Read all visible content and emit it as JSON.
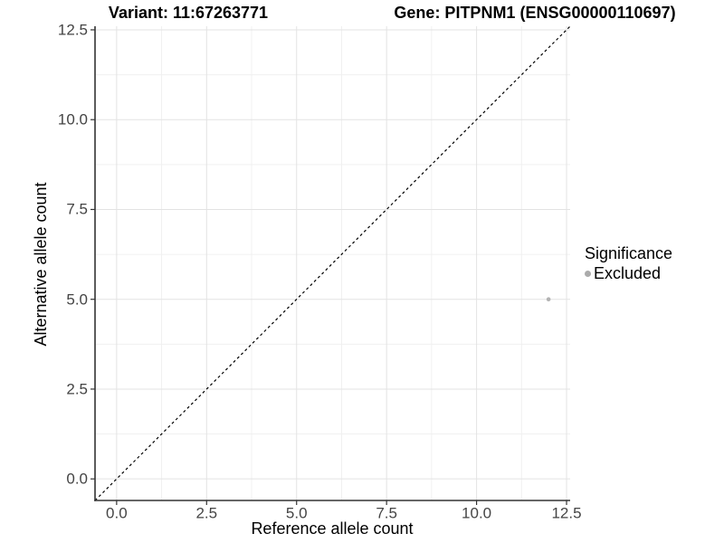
{
  "figure": {
    "title_left": "Variant: 11:67263771",
    "title_right": "Gene: PITPNM1 (ENSG00000110697)"
  },
  "chart_data": {
    "type": "scatter",
    "title": "Variant: 11:67263771    Gene: PITPNM1 (ENSG00000110697)",
    "xlabel": "Reference allele count",
    "ylabel": "Alternative allele count",
    "xlim": [
      -0.6,
      12.6
    ],
    "ylim": [
      -0.6,
      12.6
    ],
    "x_ticks": [
      0,
      2.5,
      5,
      7.5,
      10,
      12.5
    ],
    "y_ticks": [
      0,
      2.5,
      5,
      7.5,
      10,
      12.5
    ],
    "tick_decimals": 1,
    "grid": "major+minor",
    "series": [
      {
        "name": "Excluded",
        "points": [
          {
            "x": 12,
            "y": 5
          }
        ]
      }
    ],
    "reference_line": {
      "slope": 1,
      "intercept": 0,
      "style": "dashed"
    },
    "legend": {
      "title": "Significance",
      "position": "right",
      "entries": [
        {
          "label": "Excluded"
        }
      ]
    }
  },
  "colors": {
    "background": "#ffffff",
    "grid_major": "#e3e3e3",
    "grid_minor": "#f0f0f0",
    "axis_line": "#333333",
    "tick_text": "#444444",
    "title_text": "#000000",
    "point": "#b3b3b3",
    "legend_key": "#ababab",
    "reference_line": "#000000"
  }
}
